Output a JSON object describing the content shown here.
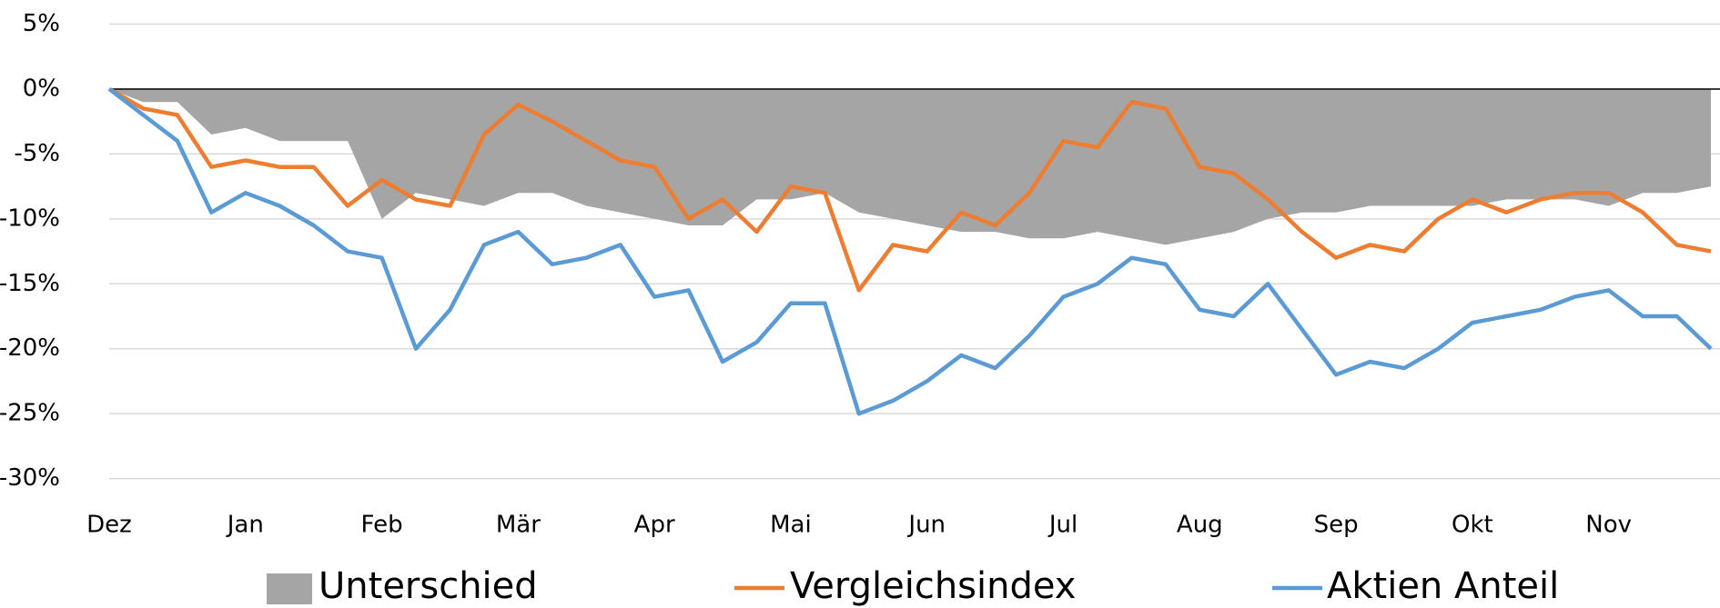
{
  "chart_data": {
    "type": "line",
    "categories": [
      "Dez",
      null,
      null,
      null,
      "Jan",
      null,
      null,
      null,
      "Feb",
      null,
      null,
      null,
      "Mär",
      null,
      null,
      null,
      "Apr",
      null,
      null,
      null,
      "Mai",
      null,
      null,
      null,
      "Jun",
      null,
      null,
      null,
      "Jul",
      null,
      null,
      null,
      "Aug",
      null,
      null,
      null,
      "Sep",
      null,
      null,
      null,
      "Okt",
      null,
      null,
      null,
      "Nov",
      null,
      null,
      null
    ],
    "series": [
      {
        "name": "Unterschied",
        "type": "area",
        "color": "#a5a5a5",
        "values": [
          0,
          -1,
          -1,
          -3.5,
          -3,
          -4,
          -4,
          -4,
          -10,
          -8,
          -8.5,
          -9,
          -8,
          -8,
          -9,
          -9.5,
          -10,
          -10.5,
          -10.5,
          -8.5,
          -8.5,
          -8,
          -9.5,
          -10,
          -10.5,
          -11,
          -11,
          -11.5,
          -11.5,
          -11,
          -11.5,
          -12,
          -11.5,
          -11,
          -10,
          -9.5,
          -9.5,
          -9,
          -9,
          -9,
          -9,
          -8.5,
          -8.5,
          -8.5,
          -9,
          -8,
          -8,
          -7.5
        ]
      },
      {
        "name": "Vergleichsindex",
        "type": "line",
        "color": "#ed7d31",
        "values": [
          0,
          -1.5,
          -2,
          -6,
          -5.5,
          -6,
          -6,
          -9,
          -7,
          -8.5,
          -9,
          -3.5,
          -1.2,
          -2.5,
          -4,
          -5.5,
          -6,
          -10,
          -8.5,
          -11,
          -7.5,
          -8,
          -15.5,
          -12,
          -12.5,
          -9.5,
          -10.5,
          -8,
          -4,
          -4.5,
          -1,
          -1.5,
          -6,
          -6.5,
          -8.5,
          -11,
          -13,
          -12,
          -12.5,
          -10,
          -8.5,
          -9.5,
          -8.5,
          -8,
          -8,
          -9.5,
          -12,
          -12.5
        ]
      },
      {
        "name": "Aktien Anteil",
        "type": "line",
        "color": "#5b9bd5",
        "values": [
          0,
          -2,
          -4,
          -9.5,
          -8,
          -9,
          -10.5,
          -12.5,
          -13,
          -20,
          -17,
          -12,
          -11,
          -13.5,
          -13,
          -12,
          -16,
          -15.5,
          -21,
          -19.5,
          -16.5,
          -16.5,
          -25,
          -24,
          -22.5,
          -20.5,
          -21.5,
          -19,
          -16,
          -15,
          -13,
          -13.5,
          -17,
          -17.5,
          -15,
          -18.5,
          -22,
          -21,
          -21.5,
          -20,
          -18,
          -17.5,
          -17,
          -16,
          -15.5,
          -17.5,
          -17.5,
          -20
        ]
      }
    ],
    "ylim": [
      -30,
      5
    ],
    "yticks": [
      {
        "value": -30,
        "label": "-30%"
      },
      {
        "value": -25,
        "label": "-25%"
      },
      {
        "value": -20,
        "label": "-20%"
      },
      {
        "value": -15,
        "label": "-15%"
      },
      {
        "value": -10,
        "label": "-10%"
      },
      {
        "value": -5,
        "label": "-5%"
      },
      {
        "value": 0,
        "label": "0%"
      },
      {
        "value": 5,
        "label": "5%"
      }
    ],
    "grid": true,
    "legend": "bottom"
  }
}
